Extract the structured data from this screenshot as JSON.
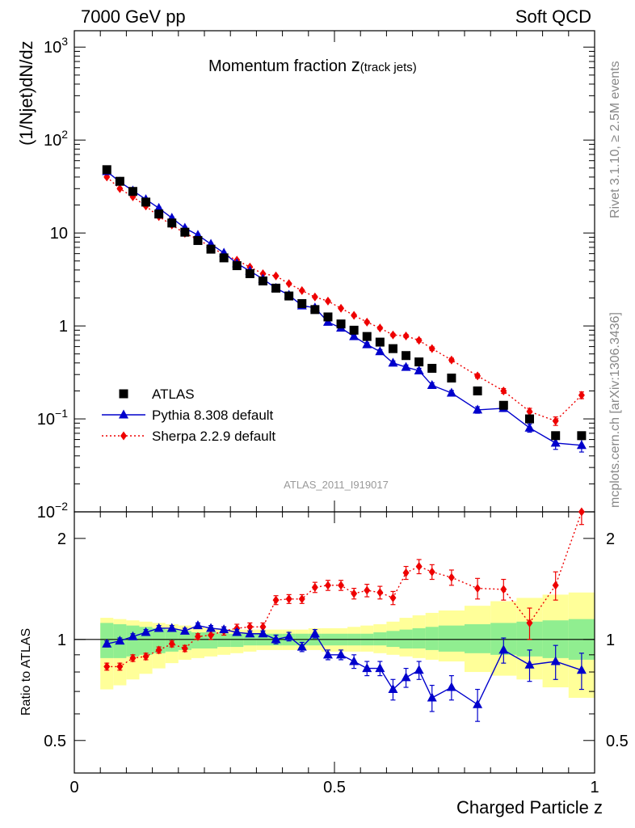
{
  "header": {
    "left": "7000 GeV pp",
    "right": "Soft QCD"
  },
  "side_text": {
    "rivet": "Rivet 3.1.10, ≥ 2.5M events",
    "mcplots": "mcplots.cern.ch [arXiv:1306.3436]"
  },
  "chart_data": [
    {
      "type": "scatter",
      "title": "Momentum fraction z(track jets)",
      "title_main": "Momentum fraction ",
      "title_z": "z",
      "title_sub": "(track jets)",
      "watermark": "ATLAS_2011_I919017",
      "ylabel": "(1/Njet)dN/dz",
      "xlabel": "Charged Particle z",
      "yscale": "log",
      "xlim": [
        0,
        1
      ],
      "ylim": [
        0.01,
        1500
      ],
      "ytick_labels": [
        {
          "v": 1000,
          "base": "10",
          "exp": "3"
        },
        {
          "v": 100,
          "base": "10",
          "exp": "2"
        },
        {
          "v": 10,
          "base": "10",
          "exp": ""
        },
        {
          "v": 1,
          "base": "1",
          "exp": ""
        },
        {
          "v": 0.1,
          "base": "10",
          "exp": "−1"
        },
        {
          "v": 0.01,
          "base": "10",
          "exp": "−2"
        }
      ],
      "legend_placement": "lower-left",
      "series": [
        {
          "name": "ATLAS",
          "color": "#000000",
          "marker": "square",
          "x": [
            0.0625,
            0.0875,
            0.1125,
            0.1375,
            0.1625,
            0.1875,
            0.2125,
            0.2375,
            0.2625,
            0.2875,
            0.3125,
            0.3375,
            0.3625,
            0.3875,
            0.4125,
            0.4375,
            0.4625,
            0.4875,
            0.5125,
            0.5375,
            0.5625,
            0.5875,
            0.6125,
            0.6375,
            0.6625,
            0.6875,
            0.725,
            0.775,
            0.825,
            0.875,
            0.925,
            0.975
          ],
          "y": [
            48,
            36,
            28,
            21.5,
            16,
            12.8,
            10.2,
            8.3,
            6.7,
            5.4,
            4.45,
            3.65,
            3.05,
            2.55,
            2.1,
            1.74,
            1.5,
            1.25,
            1.05,
            0.9,
            0.77,
            0.67,
            0.57,
            0.48,
            0.41,
            0.35,
            0.275,
            0.2,
            0.14,
            0.1,
            0.066,
            0.066
          ]
        },
        {
          "name": "Pythia 8.308 default",
          "color": "#0000cc",
          "marker": "triangle",
          "linestyle": "solid",
          "x": [
            0.0625,
            0.0875,
            0.1125,
            0.1375,
            0.1625,
            0.1875,
            0.2125,
            0.2375,
            0.2625,
            0.2875,
            0.3125,
            0.3375,
            0.3625,
            0.3875,
            0.4125,
            0.4375,
            0.4625,
            0.4875,
            0.5125,
            0.5375,
            0.5625,
            0.5875,
            0.6125,
            0.6375,
            0.6625,
            0.6875,
            0.725,
            0.775,
            0.825,
            0.875,
            0.925,
            0.975
          ],
          "y": [
            46,
            35.5,
            28.5,
            23,
            18.5,
            14.5,
            11.3,
            9.5,
            7.6,
            6.1,
            4.7,
            3.9,
            3.2,
            2.55,
            2.15,
            1.65,
            1.57,
            1.1,
            0.95,
            0.77,
            0.63,
            0.53,
            0.4,
            0.36,
            0.33,
            0.23,
            0.19,
            0.125,
            0.13,
            0.08,
            0.055,
            0.052
          ],
          "yerr": [
            1.5,
            1,
            0.8,
            0.6,
            0.5,
            0.4,
            0.3,
            0.25,
            0.2,
            0.15,
            0.12,
            0.1,
            0.08,
            0.07,
            0.06,
            0.05,
            0.05,
            0.04,
            0.035,
            0.03,
            0.03,
            0.025,
            0.02,
            0.02,
            0.02,
            0.015,
            0.012,
            0.01,
            0.01,
            0.008,
            0.008,
            0.008
          ]
        },
        {
          "name": "Sherpa 2.2.9 default",
          "color": "#ee0000",
          "marker": "diamond",
          "linestyle": "dotted",
          "x": [
            0.0625,
            0.0875,
            0.1125,
            0.1375,
            0.1625,
            0.1875,
            0.2125,
            0.2375,
            0.2625,
            0.2875,
            0.3125,
            0.3375,
            0.3625,
            0.3875,
            0.4125,
            0.4375,
            0.4625,
            0.4875,
            0.5125,
            0.5375,
            0.5625,
            0.5875,
            0.6125,
            0.6375,
            0.6625,
            0.6875,
            0.725,
            0.775,
            0.825,
            0.875,
            0.925,
            0.975
          ],
          "y": [
            40,
            30,
            24.5,
            19.5,
            15,
            12.2,
            9.9,
            8.6,
            7,
            5.9,
            5.1,
            4.3,
            3.65,
            3.45,
            2.85,
            2.4,
            2.05,
            1.85,
            1.55,
            1.3,
            1.1,
            0.95,
            0.8,
            0.78,
            0.7,
            0.57,
            0.43,
            0.29,
            0.2,
            0.12,
            0.095,
            0.18
          ],
          "yerr": [
            1,
            0.8,
            0.6,
            0.5,
            0.4,
            0.3,
            0.25,
            0.2,
            0.18,
            0.15,
            0.12,
            0.1,
            0.09,
            0.08,
            0.07,
            0.06,
            0.05,
            0.05,
            0.04,
            0.04,
            0.035,
            0.03,
            0.03,
            0.03,
            0.03,
            0.025,
            0.02,
            0.015,
            0.012,
            0.01,
            0.01,
            0.015
          ]
        }
      ]
    },
    {
      "type": "scatter",
      "ylabel": "Ratio to ATLAS",
      "xlabel": "Charged Particle z",
      "yscale": "log",
      "xlim": [
        0,
        1
      ],
      "ylim": [
        0.4,
        2.4
      ],
      "yticks": [
        0.5,
        1,
        2
      ],
      "ytick_labels": [
        "0.5",
        "1",
        "2"
      ],
      "xticks": [
        0,
        0.5,
        1
      ],
      "xtick_labels": [
        "0",
        "0.5",
        "1"
      ],
      "reference_line": 1,
      "uncertainty_bands": {
        "edges": [
          0.05,
          0.075,
          0.1,
          0.125,
          0.15,
          0.175,
          0.2,
          0.225,
          0.25,
          0.275,
          0.3,
          0.325,
          0.35,
          0.375,
          0.4,
          0.425,
          0.45,
          0.475,
          0.5,
          0.525,
          0.55,
          0.575,
          0.6,
          0.625,
          0.65,
          0.675,
          0.7,
          0.75,
          0.8,
          0.85,
          0.9,
          0.95,
          1.0
        ],
        "stat": {
          "color": "#90ee90",
          "low": [
            0.88,
            0.88,
            0.89,
            0.9,
            0.91,
            0.92,
            0.93,
            0.94,
            0.94,
            0.95,
            0.95,
            0.96,
            0.96,
            0.96,
            0.96,
            0.96,
            0.96,
            0.96,
            0.96,
            0.96,
            0.96,
            0.96,
            0.95,
            0.94,
            0.94,
            0.93,
            0.92,
            0.91,
            0.9,
            0.89,
            0.88,
            0.87
          ],
          "high": [
            1.12,
            1.11,
            1.1,
            1.09,
            1.08,
            1.07,
            1.06,
            1.05,
            1.05,
            1.04,
            1.04,
            1.04,
            1.04,
            1.04,
            1.04,
            1.04,
            1.04,
            1.04,
            1.04,
            1.04,
            1.04,
            1.05,
            1.06,
            1.07,
            1.08,
            1.09,
            1.1,
            1.11,
            1.12,
            1.13,
            1.14,
            1.15
          ]
        },
        "total": {
          "color": "#ffff99",
          "low": [
            0.71,
            0.73,
            0.76,
            0.79,
            0.82,
            0.85,
            0.87,
            0.88,
            0.89,
            0.9,
            0.91,
            0.92,
            0.93,
            0.93,
            0.93,
            0.93,
            0.93,
            0.92,
            0.92,
            0.92,
            0.92,
            0.91,
            0.9,
            0.89,
            0.88,
            0.87,
            0.86,
            0.8,
            0.78,
            0.76,
            0.72,
            0.67
          ],
          "high": [
            1.16,
            1.15,
            1.14,
            1.13,
            1.12,
            1.11,
            1.1,
            1.09,
            1.08,
            1.07,
            1.07,
            1.07,
            1.07,
            1.07,
            1.07,
            1.07,
            1.08,
            1.08,
            1.08,
            1.09,
            1.1,
            1.11,
            1.13,
            1.16,
            1.18,
            1.2,
            1.22,
            1.26,
            1.3,
            1.33,
            1.36,
            1.38
          ]
        }
      },
      "series": [
        {
          "name": "Pythia 8.308 default",
          "color": "#0000cc",
          "marker": "triangle",
          "linestyle": "solid",
          "x": [
            0.0625,
            0.0875,
            0.1125,
            0.1375,
            0.1625,
            0.1875,
            0.2125,
            0.2375,
            0.2625,
            0.2875,
            0.3125,
            0.3375,
            0.3625,
            0.3875,
            0.4125,
            0.4375,
            0.4625,
            0.4875,
            0.5125,
            0.5375,
            0.5625,
            0.5875,
            0.6125,
            0.6375,
            0.6625,
            0.6875,
            0.725,
            0.775,
            0.825,
            0.875,
            0.925,
            0.975
          ],
          "y": [
            0.97,
            0.99,
            1.02,
            1.05,
            1.08,
            1.08,
            1.06,
            1.1,
            1.08,
            1.07,
            1.05,
            1.04,
            1.04,
            1.0,
            1.02,
            0.95,
            1.04,
            0.9,
            0.9,
            0.86,
            0.82,
            0.82,
            0.71,
            0.77,
            0.81,
            0.67,
            0.72,
            0.64,
            0.93,
            0.84,
            0.86,
            0.81
          ],
          "yerr": [
            0.02,
            0.02,
            0.02,
            0.02,
            0.02,
            0.02,
            0.02,
            0.02,
            0.02,
            0.02,
            0.02,
            0.02,
            0.02,
            0.03,
            0.03,
            0.03,
            0.03,
            0.03,
            0.03,
            0.04,
            0.04,
            0.04,
            0.05,
            0.05,
            0.05,
            0.06,
            0.06,
            0.07,
            0.08,
            0.09,
            0.1,
            0.1
          ]
        },
        {
          "name": "Sherpa 2.2.9 default",
          "color": "#ee0000",
          "marker": "diamond",
          "linestyle": "dotted",
          "x": [
            0.0625,
            0.0875,
            0.1125,
            0.1375,
            0.1625,
            0.1875,
            0.2125,
            0.2375,
            0.2625,
            0.2875,
            0.3125,
            0.3375,
            0.3625,
            0.3875,
            0.4125,
            0.4375,
            0.4625,
            0.4875,
            0.5125,
            0.5375,
            0.5625,
            0.5875,
            0.6125,
            0.6375,
            0.6625,
            0.6875,
            0.725,
            0.775,
            0.825,
            0.875,
            0.925,
            0.975
          ],
          "y": [
            0.83,
            0.83,
            0.88,
            0.89,
            0.93,
            0.97,
            0.94,
            1.02,
            1.03,
            1.06,
            1.08,
            1.09,
            1.09,
            1.31,
            1.32,
            1.32,
            1.43,
            1.45,
            1.45,
            1.37,
            1.4,
            1.38,
            1.33,
            1.58,
            1.65,
            1.59,
            1.53,
            1.42,
            1.41,
            1.12,
            1.45,
            2.4
          ],
          "yerr": [
            0.02,
            0.02,
            0.02,
            0.02,
            0.02,
            0.02,
            0.02,
            0.02,
            0.03,
            0.03,
            0.03,
            0.03,
            0.03,
            0.04,
            0.04,
            0.04,
            0.05,
            0.05,
            0.05,
            0.05,
            0.06,
            0.06,
            0.06,
            0.07,
            0.08,
            0.08,
            0.08,
            0.1,
            0.1,
            0.12,
            0.14,
            0.2
          ]
        }
      ]
    }
  ]
}
